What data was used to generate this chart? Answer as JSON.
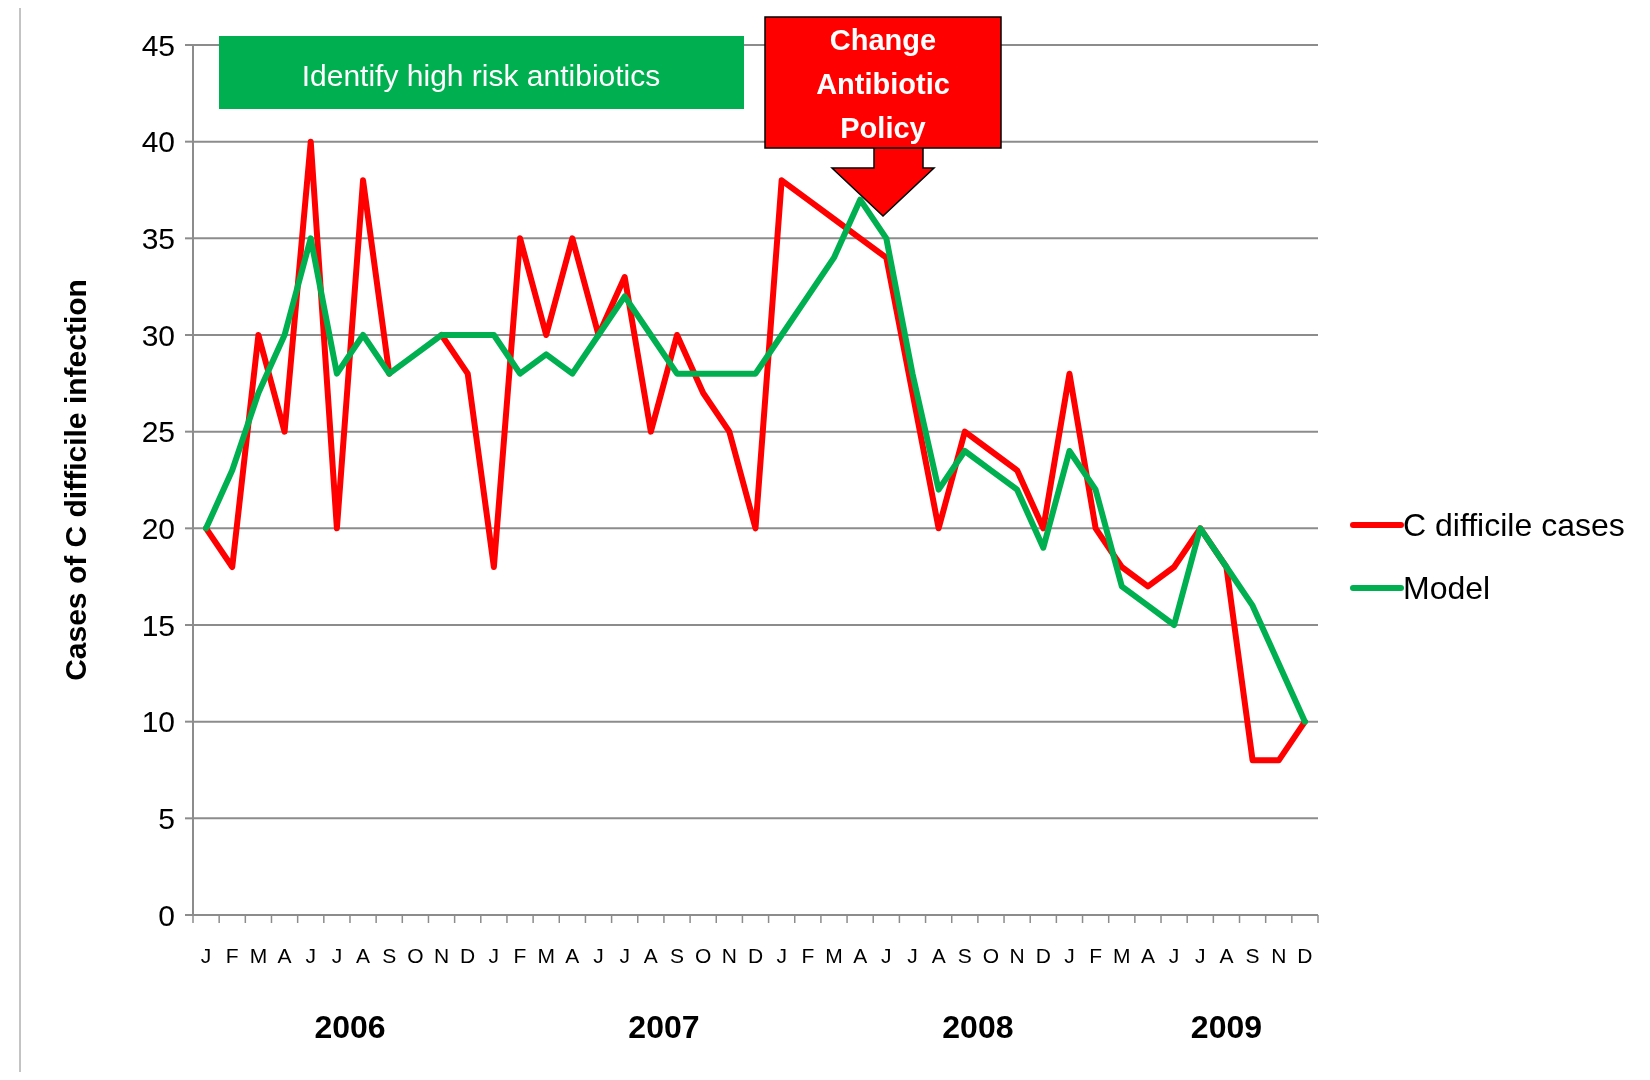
{
  "chart_data": {
    "type": "line",
    "ylabel": "Cases of C difficile infection",
    "categories": [
      "J",
      "F",
      "M",
      "A",
      "J",
      "J",
      "A",
      "S",
      "O",
      "N",
      "D",
      "J",
      "F",
      "M",
      "A",
      "J",
      "J",
      "A",
      "S",
      "O",
      "N",
      "D",
      "J",
      "F",
      "M",
      "A",
      "J",
      "J",
      "A",
      "S",
      "O",
      "N",
      "D",
      "J",
      "F",
      "M",
      "A",
      "J",
      "J",
      "A",
      "S",
      "N",
      "D"
    ],
    "series": [
      {
        "name": "C difficile cases",
        "color": "#ff0000",
        "values": [
          20,
          18,
          30,
          25,
          40,
          20,
          38,
          28,
          null,
          30,
          28,
          18,
          35,
          30,
          35,
          30,
          33,
          25,
          30,
          27,
          25,
          20,
          38,
          37,
          36,
          35,
          34,
          27,
          20,
          25,
          24,
          23,
          20,
          28,
          20,
          18,
          17,
          18,
          20,
          18,
          8,
          8,
          10
        ]
      },
      {
        "name": "Model",
        "color": "#00b050",
        "values": [
          20,
          23,
          27,
          30,
          35,
          28,
          30,
          28,
          29,
          30,
          30,
          30,
          28,
          29,
          28,
          30,
          32,
          30,
          28,
          28,
          28,
          28,
          30,
          32,
          34,
          37,
          35,
          28,
          22,
          24,
          23,
          22,
          19,
          24,
          22,
          17,
          16,
          15,
          20,
          18,
          16,
          13,
          10
        ]
      }
    ],
    "ylim": [
      0,
      45
    ],
    "yticks": [
      0,
      5,
      10,
      15,
      20,
      25,
      30,
      35,
      40,
      45
    ],
    "grid": "y",
    "legend": "right",
    "marker": "none",
    "line_style": "solid",
    "annotations": [
      "Identify high risk antibiotics",
      "Change Antibiotic Policy",
      "2006",
      "2007",
      "2008",
      "2009"
    ]
  }
}
